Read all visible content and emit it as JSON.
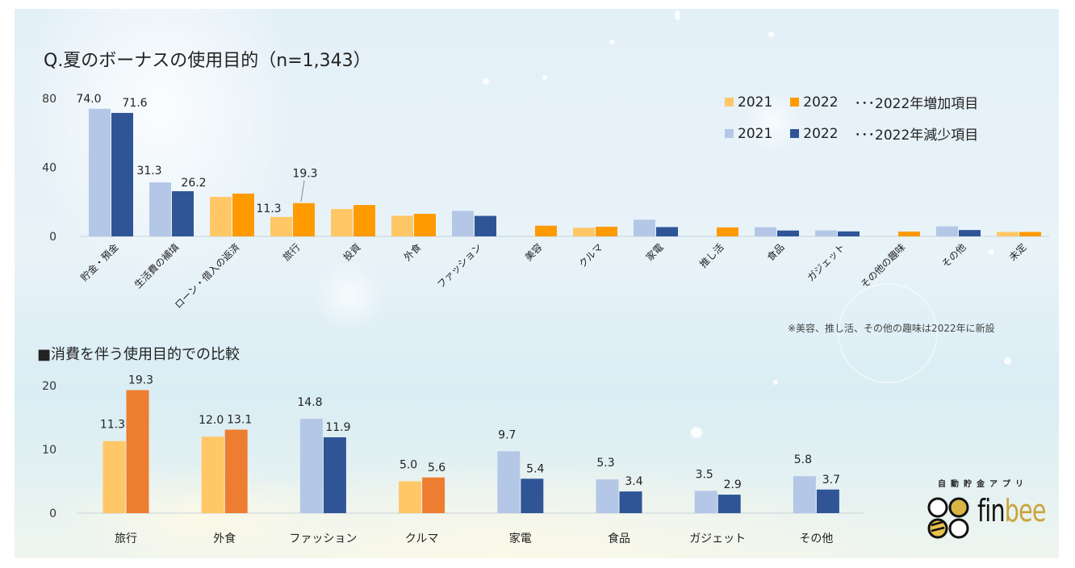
{
  "title": "Q.夏のボーナスの使用目的（n=1,343）",
  "subtitle": "■消費を伴う使用目的での比較",
  "note": "※美容、推し活、その他の趣味は2022年に新設",
  "colors": {
    "increase_2021": "#ffc766",
    "increase_2022": "#ff9a00",
    "decrease_2021": "#b4c7e7",
    "decrease_2022": "#2f5597",
    "increase_2022_lower": "#ed7d31"
  },
  "legend": {
    "row1": {
      "item1": "2021",
      "item2": "2022",
      "desc": "･･･2022年増加項目"
    },
    "row2": {
      "item1": "2021",
      "item2": "2022",
      "desc": "･･･2022年減少項目"
    }
  },
  "logo": {
    "caption": "自動貯金アプリ",
    "word_fin": "fin",
    "word_bee": "bee",
    "icon": "bee-hive-logo-icon"
  },
  "chart_data": [
    {
      "type": "bar",
      "title": "Q.夏のボーナスの使用目的（n=1,343）",
      "xlabel": "",
      "ylabel": "",
      "ylim": [
        0,
        80
      ],
      "yticks": [
        "0",
        "40",
        "80"
      ],
      "grid": false,
      "legend_position": "top-right",
      "categories": [
        "貯金・預金",
        "生活費の補填",
        "ローン・借入の返済",
        "旅行",
        "投資",
        "外食",
        "ファッション",
        "美容",
        "クルマ",
        "家電",
        "推し活",
        "食品",
        "ガジェット",
        "その他の趣味",
        "その他",
        "未定"
      ],
      "trend": [
        "decrease",
        "decrease",
        "increase",
        "increase",
        "increase",
        "increase",
        "decrease",
        "increase",
        "increase",
        "decrease",
        "increase",
        "decrease",
        "decrease",
        "increase",
        "decrease",
        "increase"
      ],
      "series": [
        {
          "name": "2021",
          "values": [
            74.0,
            31.3,
            22.9,
            11.3,
            15.9,
            12.0,
            14.8,
            null,
            5.0,
            9.7,
            null,
            5.3,
            3.5,
            null,
            5.8,
            2.6
          ]
        },
        {
          "name": "2022",
          "values": [
            71.6,
            26.2,
            24.8,
            19.3,
            18.2,
            13.1,
            11.9,
            6.2,
            5.6,
            5.4,
            5.2,
            3.4,
            2.9,
            2.8,
            3.7,
            2.6
          ]
        }
      ],
      "data_labels": [
        {
          "category": "貯金・預金",
          "series": "2021",
          "text": "74.0"
        },
        {
          "category": "貯金・預金",
          "series": "2022",
          "text": "71.6"
        },
        {
          "category": "生活費の補填",
          "series": "2021",
          "text": "31.3"
        },
        {
          "category": "生活費の補填",
          "series": "2022",
          "text": "26.2"
        },
        {
          "category": "旅行",
          "series": "2021",
          "text": "11.3"
        },
        {
          "category": "旅行",
          "series": "2022",
          "text": "19.3"
        }
      ]
    },
    {
      "type": "bar",
      "title": "■消費を伴う使用目的での比較",
      "xlabel": "",
      "ylabel": "",
      "ylim": [
        0,
        20
      ],
      "yticks": [
        "0",
        "10",
        "20"
      ],
      "grid": false,
      "categories": [
        "旅行",
        "外食",
        "ファッション",
        "クルマ",
        "家電",
        "食品",
        "ガジェット",
        "その他"
      ],
      "trend": [
        "increase",
        "increase",
        "decrease",
        "increase",
        "decrease",
        "decrease",
        "decrease",
        "decrease"
      ],
      "series": [
        {
          "name": "2021",
          "values": [
            11.3,
            12.0,
            14.8,
            5.0,
            9.7,
            5.3,
            3.5,
            5.8
          ],
          "labels": [
            "11.3",
            "12.0",
            "14.8",
            "5.0",
            "9.7",
            "5.3",
            "3.5",
            "5.8"
          ]
        },
        {
          "name": "2022",
          "values": [
            19.3,
            13.1,
            11.9,
            5.6,
            5.4,
            3.4,
            2.9,
            3.7
          ],
          "labels": [
            "19.3",
            "13.1",
            "11.9",
            "5.6",
            "5.4",
            "3.4",
            "2.9",
            "3.7"
          ]
        }
      ]
    }
  ]
}
